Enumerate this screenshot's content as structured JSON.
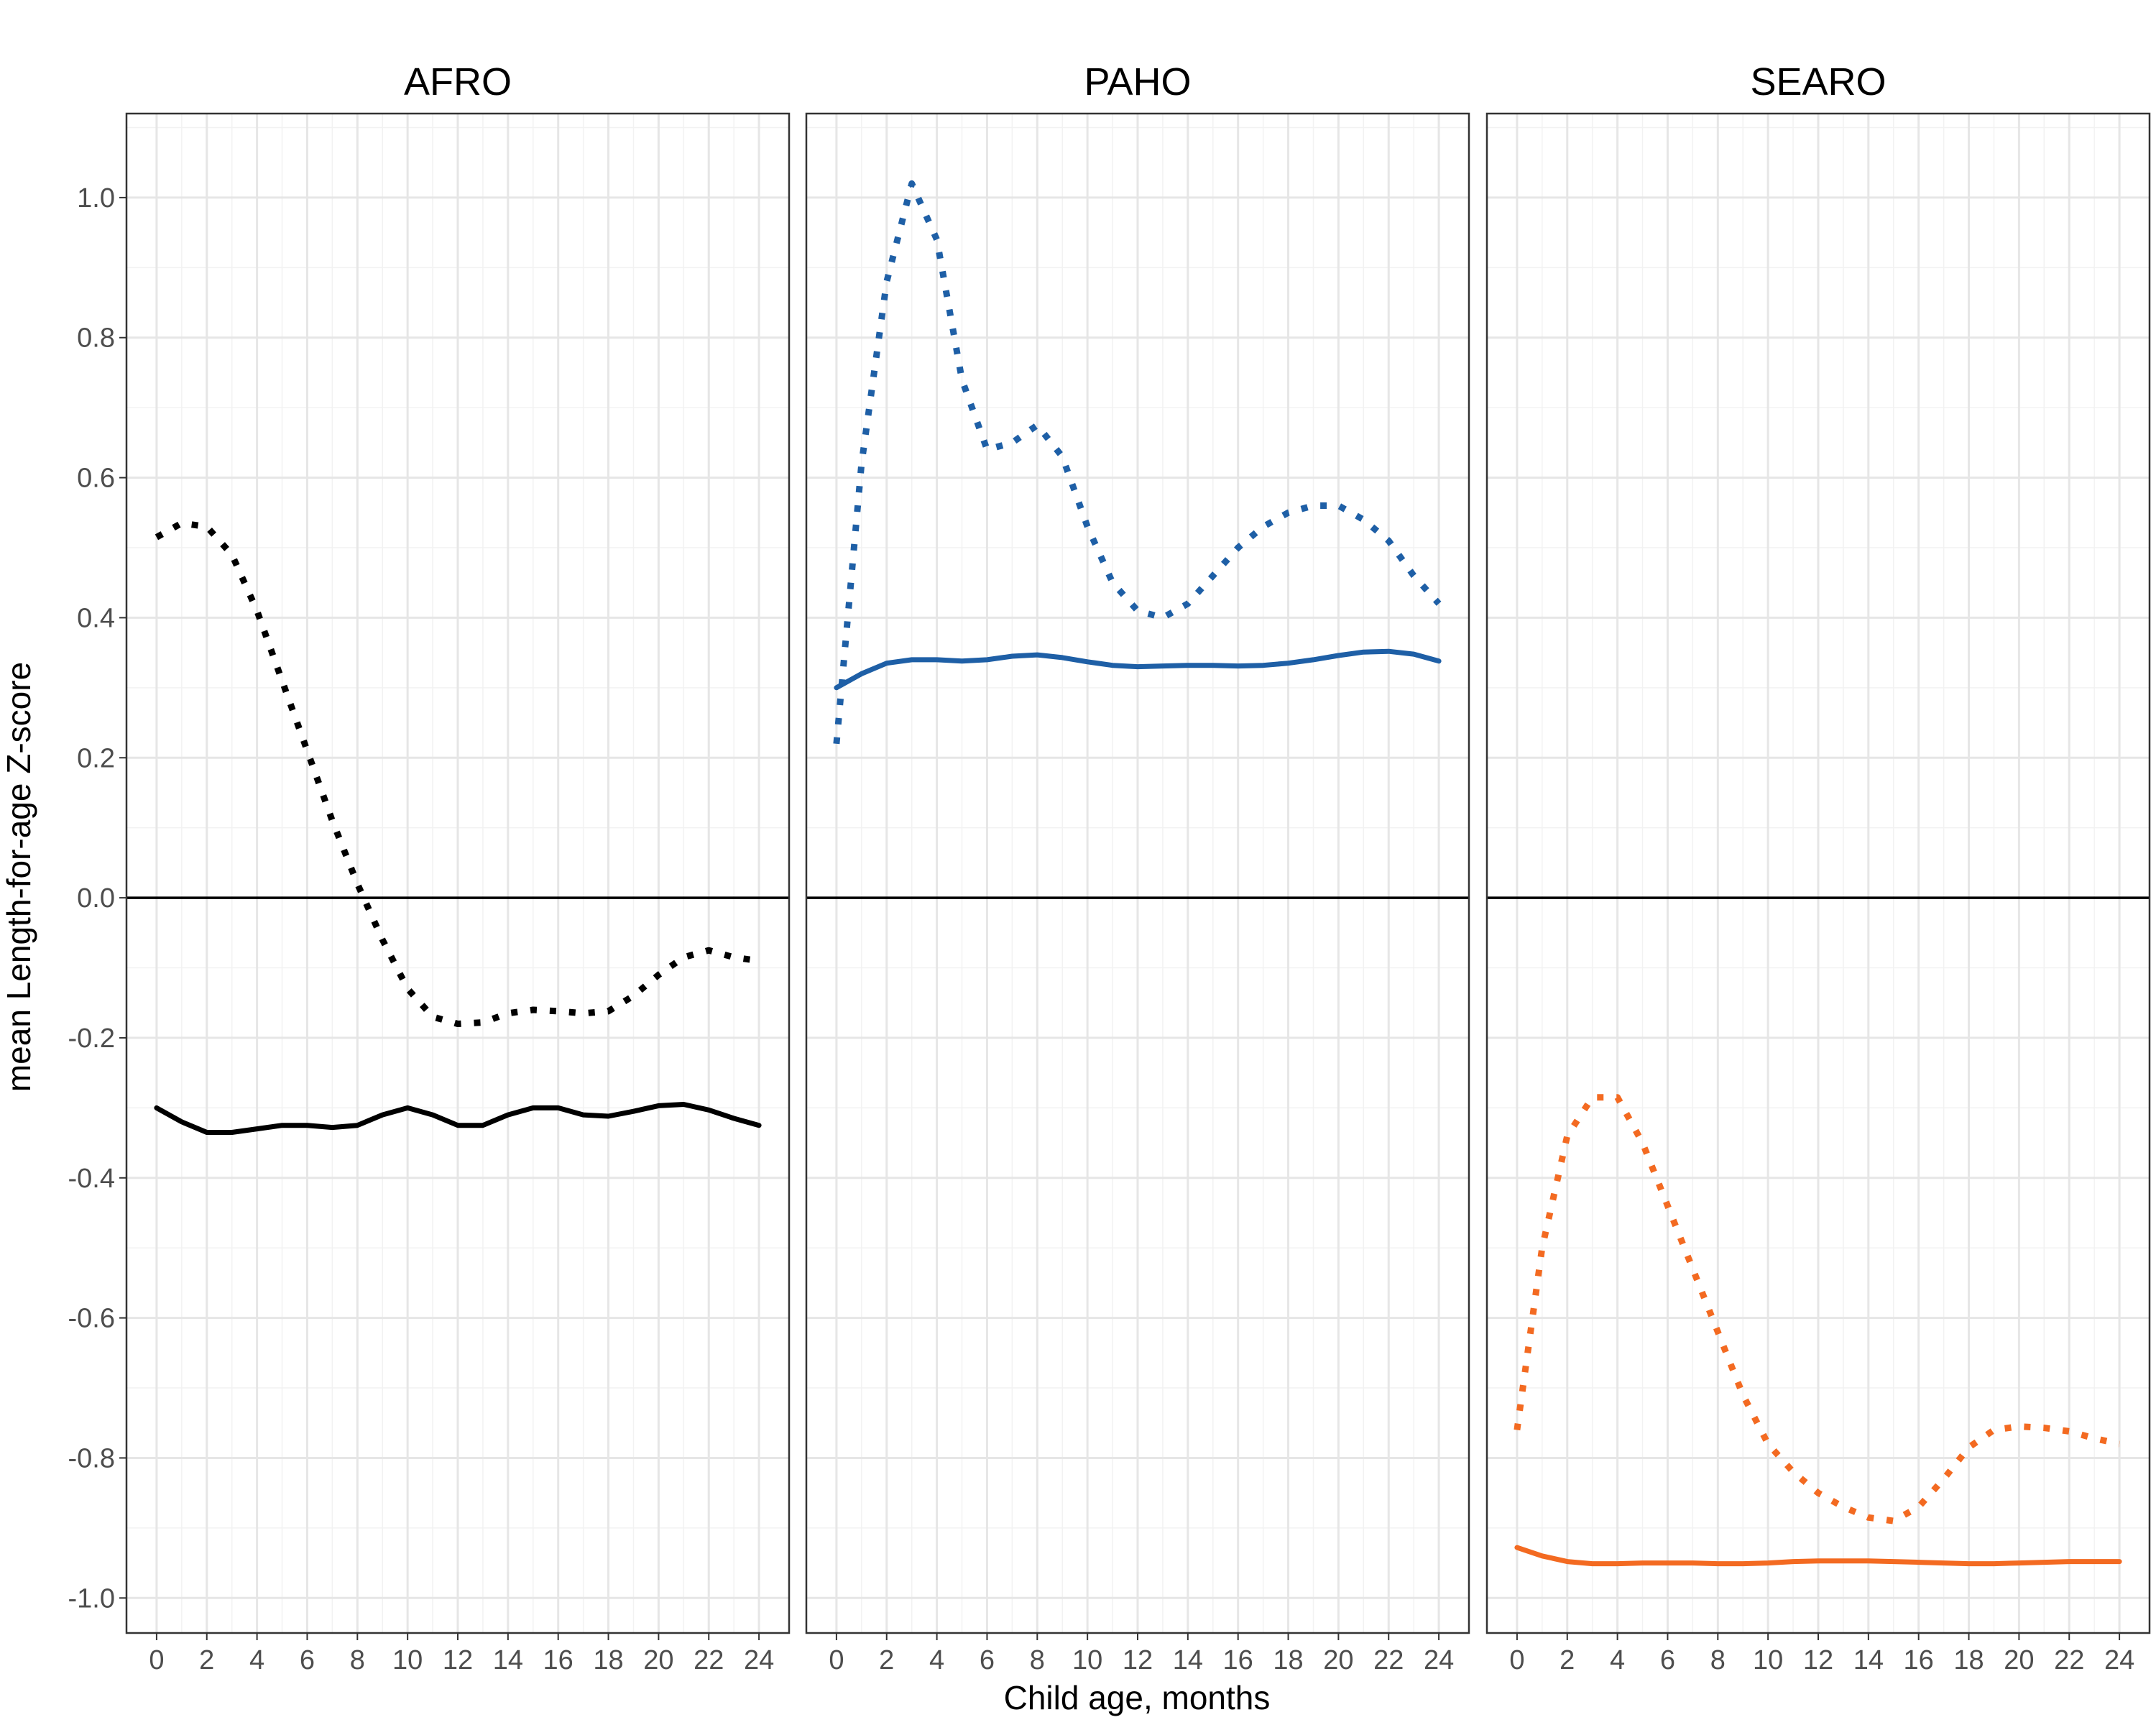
{
  "chart_data": {
    "type": "line",
    "xlabel": "Child age, months",
    "ylabel": "mean Length-for-age Z-score",
    "xlim": [
      -1.2,
      25.2
    ],
    "ylim": [
      -1.05,
      1.12
    ],
    "x_ticks": [
      "0",
      "2",
      "4",
      "6",
      "8",
      "10",
      "12",
      "14",
      "16",
      "18",
      "20",
      "22",
      "24"
    ],
    "y_ticks": [
      "1.0",
      "0.8",
      "0.6",
      "0.4",
      "0.2",
      "0.0",
      "-0.2",
      "-0.4",
      "-0.6",
      "-0.8",
      "-1.0"
    ],
    "reference_line_y": 0,
    "grid": true,
    "legend": "none",
    "panels": [
      {
        "title": "AFRO",
        "color": "#000000",
        "series": [
          {
            "style": "solid",
            "x": [
              0,
              1,
              2,
              3,
              4,
              5,
              6,
              7,
              8,
              9,
              10,
              11,
              12,
              13,
              14,
              15,
              16,
              17,
              18,
              19,
              20,
              21,
              22,
              23,
              24
            ],
            "y": [
              -0.3,
              -0.32,
              -0.335,
              -0.335,
              -0.33,
              -0.325,
              -0.325,
              -0.328,
              -0.325,
              -0.31,
              -0.3,
              -0.31,
              -0.325,
              -0.325,
              -0.31,
              -0.3,
              -0.3,
              -0.31,
              -0.312,
              -0.305,
              -0.297,
              -0.295,
              -0.303,
              -0.315,
              -0.325
            ]
          },
          {
            "style": "dotted",
            "x": [
              0,
              1,
              2,
              3,
              4,
              5,
              6,
              7,
              8,
              9,
              10,
              11,
              12,
              13,
              14,
              15,
              16,
              17,
              18,
              19,
              20,
              21,
              22,
              23,
              24
            ],
            "y": [
              0.515,
              0.535,
              0.53,
              0.49,
              0.41,
              0.31,
              0.21,
              0.11,
              0.02,
              -0.06,
              -0.13,
              -0.17,
              -0.18,
              -0.178,
              -0.165,
              -0.16,
              -0.162,
              -0.165,
              -0.162,
              -0.14,
              -0.11,
              -0.085,
              -0.075,
              -0.085,
              -0.09
            ]
          }
        ]
      },
      {
        "title": "PAHO",
        "color": "#1e5fa6",
        "series": [
          {
            "style": "solid",
            "x": [
              0,
              1,
              2,
              3,
              4,
              5,
              6,
              7,
              8,
              9,
              10,
              11,
              12,
              13,
              14,
              15,
              16,
              17,
              18,
              19,
              20,
              21,
              22,
              23,
              24
            ],
            "y": [
              0.3,
              0.32,
              0.335,
              0.34,
              0.34,
              0.338,
              0.34,
              0.345,
              0.347,
              0.343,
              0.337,
              0.332,
              0.33,
              0.331,
              0.332,
              0.332,
              0.331,
              0.332,
              0.335,
              0.34,
              0.346,
              0.351,
              0.352,
              0.348,
              0.338
            ]
          },
          {
            "style": "dotted",
            "x": [
              0,
              1,
              2,
              3,
              4,
              5,
              6,
              7,
              8,
              9,
              10,
              11,
              12,
              13,
              14,
              15,
              16,
              17,
              18,
              19,
              20,
              21,
              22,
              23,
              24
            ],
            "y": [
              0.22,
              0.62,
              0.88,
              1.02,
              0.94,
              0.74,
              0.64,
              0.65,
              0.675,
              0.63,
              0.53,
              0.45,
              0.41,
              0.4,
              0.42,
              0.46,
              0.5,
              0.53,
              0.55,
              0.56,
              0.56,
              0.54,
              0.51,
              0.46,
              0.42
            ]
          }
        ]
      },
      {
        "title": "SEARO",
        "color": "#f36a21",
        "series": [
          {
            "style": "solid",
            "x": [
              0,
              1,
              2,
              3,
              4,
              5,
              6,
              7,
              8,
              9,
              10,
              11,
              12,
              13,
              14,
              15,
              16,
              17,
              18,
              19,
              20,
              21,
              22,
              23,
              24
            ],
            "y": [
              -0.928,
              -0.94,
              -0.948,
              -0.951,
              -0.951,
              -0.95,
              -0.95,
              -0.95,
              -0.951,
              -0.951,
              -0.95,
              -0.948,
              -0.947,
              -0.947,
              -0.947,
              -0.948,
              -0.949,
              -0.95,
              -0.951,
              -0.951,
              -0.95,
              -0.949,
              -0.948,
              -0.948,
              -0.948
            ]
          },
          {
            "style": "dotted",
            "x": [
              0,
              1,
              2,
              3,
              4,
              5,
              6,
              7,
              8,
              9,
              10,
              11,
              12,
              13,
              14,
              15,
              16,
              17,
              18,
              19,
              20,
              21,
              22,
              23,
              24
            ],
            "y": [
              -0.76,
              -0.5,
              -0.34,
              -0.285,
              -0.285,
              -0.35,
              -0.44,
              -0.53,
              -0.62,
              -0.71,
              -0.78,
              -0.82,
              -0.85,
              -0.87,
              -0.885,
              -0.89,
              -0.87,
              -0.83,
              -0.785,
              -0.76,
              -0.755,
              -0.757,
              -0.762,
              -0.772,
              -0.78
            ]
          }
        ]
      }
    ]
  }
}
